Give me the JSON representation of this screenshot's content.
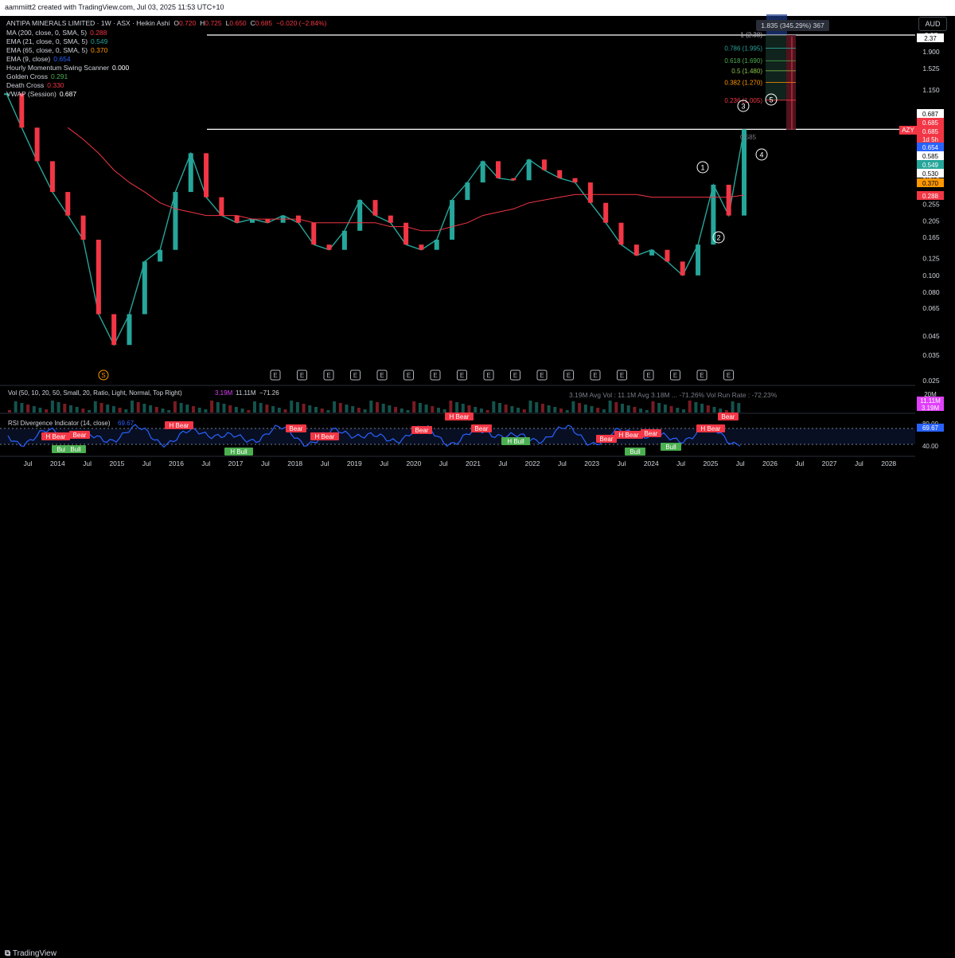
{
  "header": {
    "credit": "aammiitt2 created with TradingView.com, Jul 03, 2025 11:53 UTC+10",
    "currency": "AUD"
  },
  "legend": {
    "title": "ANTIPA MINERALS LIMITED · 1W · ASX · Heikin Ashi",
    "ohlc": [
      {
        "k": "O",
        "v": "0.720"
      },
      {
        "k": "H",
        "v": "0.725"
      },
      {
        "k": "L",
        "v": "0.650"
      },
      {
        "k": "C",
        "v": "0.685"
      },
      {
        "k": "",
        "v": "−0.020 (−2.84%)"
      }
    ],
    "lines": [
      {
        "label": "MA (200, close, 0, SMA, 5)",
        "value": "0.288",
        "color": "#f23645"
      },
      {
        "label": "EMA (21, close, 0, SMA, 5)",
        "value": "0.549",
        "color": "#26a69a"
      },
      {
        "label": "EMA (65, close, 0, SMA, 5)",
        "value": "0.370",
        "color": "#ff9800"
      },
      {
        "label": "EMA (9, close)",
        "value": "0.654",
        "color": "#2962ff"
      },
      {
        "label": "Hourly Momentum Swing Scanner",
        "value": "0.000",
        "color": "#ffffff"
      },
      {
        "label": "Golden Cross",
        "value": "0.291",
        "color": "#4caf50"
      },
      {
        "label": "Death Cross",
        "value": "0.330",
        "color": "#f23645"
      },
      {
        "label": "VWAP (Session)",
        "value": "0.687",
        "color": "#ffffff"
      }
    ]
  },
  "price_axis": {
    "ticks": [
      "2.37",
      "1.900",
      "1.525",
      "1.150",
      "0.685",
      "0.585",
      "0.530",
      "0.370",
      "0.288",
      "0.255",
      "0.205",
      "0.165",
      "0.125",
      "0.100",
      "0.080",
      "0.065",
      "0.045",
      "0.035",
      "0.025"
    ],
    "badges": [
      {
        "text": "2.37",
        "bg": "#ffffff",
        "fg": "#000000"
      },
      {
        "text": "0.687",
        "bg": "#ffffff",
        "fg": "#000000"
      },
      {
        "text": "0.685",
        "bg": "#f23645",
        "fg": "#ffffff"
      },
      {
        "text": "0.685",
        "bg": "#f23645",
        "fg": "#ffffff"
      },
      {
        "text": "1d 5h",
        "bg": "#f23645",
        "fg": "#ffffff"
      },
      {
        "text": "0.654",
        "bg": "#2962ff",
        "fg": "#ffffff"
      },
      {
        "text": "0.585",
        "bg": "#ffffff",
        "fg": "#000000"
      },
      {
        "text": "0.549",
        "bg": "#26a69a",
        "fg": "#ffffff"
      },
      {
        "text": "0.530",
        "bg": "#ffffff",
        "fg": "#000000"
      },
      {
        "text": "0.370",
        "bg": "#ff9800",
        "fg": "#000000"
      },
      {
        "text": "0.288",
        "bg": "#f23645",
        "fg": "#ffffff"
      }
    ],
    "symbol_tag": "AZY"
  },
  "fib_levels": [
    {
      "label": "1 (2.38)",
      "price": 2.38,
      "color": "#b2b5be"
    },
    {
      "label": "0.786 (1.995)",
      "price": 1.995,
      "color": "#26a69a"
    },
    {
      "label": "0.618 (1.690)",
      "price": 1.69,
      "color": "#4caf50"
    },
    {
      "label": "0.5 (1.480)",
      "price": 1.48,
      "color": "#8bc34a"
    },
    {
      "label": "0.382 (1.270)",
      "price": 1.27,
      "color": "#ff9800"
    },
    {
      "label": "0.236 (1.005)",
      "price": 1.005,
      "color": "#f23645"
    }
  ],
  "measure_box": {
    "label": "1.835 (345.29%) 367"
  },
  "wave_labels": [
    "1",
    "2",
    "3",
    "4",
    "5"
  ],
  "wave_extra": "0.585",
  "event_markers": [
    "S",
    "E",
    "E",
    "E",
    "E",
    "E",
    "E",
    "E",
    "E",
    "E",
    "E",
    "E",
    "E",
    "E",
    "E",
    "E",
    "E",
    "E",
    "E"
  ],
  "volume_pane": {
    "label": "Vol (50, 10, 20, 50, Small, 20, Ratio, Light, Normal, Top Right)",
    "v1": "3.19M",
    "v2": "11.11M",
    "v3": "−71.26",
    "stats": "3.19M  Avg Vol : 11.1M  Avg 3.18M ... -71.26%  Vol Run Rate : -72.23%",
    "axis": [
      "20M",
      "11.11M",
      "3.19M"
    ]
  },
  "rsi_pane": {
    "label": "RSI Divergence Indicator (14, close)",
    "value": "69.67",
    "axis": [
      "80.00",
      "69.67",
      "40.00"
    ],
    "bear_tags": [
      "H Bear",
      "Bear",
      "H Bear",
      "Bear",
      "H Bear",
      "Bear",
      "H Bear",
      "Bear",
      "H Bear",
      "Bear",
      "H Bear",
      "Bear",
      "Bear"
    ],
    "bull_tags": [
      "Bull",
      "Bull",
      "H Bull",
      "H Bull",
      "Bull",
      "Bull"
    ]
  },
  "time_axis": [
    "Jul",
    "2014",
    "Jul",
    "2015",
    "Jul",
    "2016",
    "Jul",
    "2017",
    "Jul",
    "2018",
    "Jul",
    "2019",
    "Jul",
    "2020",
    "Jul",
    "2021",
    "Jul",
    "2022",
    "Jul",
    "2023",
    "Jul",
    "2024",
    "Jul",
    "2025",
    "Jul",
    "2026",
    "Jul",
    "2027",
    "Jul",
    "2028"
  ],
  "footer": {
    "brand": "TradingView"
  },
  "chart_data": {
    "type": "line",
    "title": "ANTIPA MINERALS LIMITED · 1W · ASX · Heikin Ashi",
    "xlabel": "",
    "ylabel": "",
    "log_scale": true,
    "ylim": [
      0.025,
      2.37
    ],
    "x": [
      "2013-07",
      "2013-10",
      "2014-01",
      "2014-04",
      "2014-07",
      "2014-10",
      "2015-01",
      "2015-04",
      "2015-07",
      "2015-10",
      "2016-01",
      "2016-04",
      "2016-07",
      "2016-10",
      "2017-01",
      "2017-04",
      "2017-07",
      "2017-10",
      "2018-01",
      "2018-04",
      "2018-07",
      "2018-10",
      "2019-01",
      "2019-04",
      "2019-07",
      "2019-10",
      "2020-01",
      "2020-04",
      "2020-07",
      "2020-10",
      "2021-01",
      "2021-04",
      "2021-07",
      "2021-10",
      "2022-01",
      "2022-04",
      "2022-07",
      "2022-10",
      "2023-01",
      "2023-04",
      "2023-07",
      "2023-10",
      "2024-01",
      "2024-04",
      "2024-07",
      "2024-10",
      "2025-01",
      "2025-04",
      "2025-07"
    ],
    "series": [
      {
        "name": "Price",
        "values": [
          1.1,
          0.7,
          0.45,
          0.3,
          0.22,
          0.16,
          0.06,
          0.04,
          0.06,
          0.12,
          0.14,
          0.3,
          0.5,
          0.28,
          0.22,
          0.2,
          0.21,
          0.2,
          0.22,
          0.2,
          0.15,
          0.14,
          0.18,
          0.27,
          0.22,
          0.2,
          0.15,
          0.14,
          0.16,
          0.27,
          0.34,
          0.45,
          0.36,
          0.35,
          0.46,
          0.4,
          0.36,
          0.34,
          0.26,
          0.2,
          0.15,
          0.13,
          0.14,
          0.12,
          0.1,
          0.15,
          0.33,
          0.22,
          0.685
        ]
      },
      {
        "name": "MA (200, close, 0, SMA, 5)",
        "values": [
          null,
          null,
          null,
          null,
          0.7,
          0.6,
          0.5,
          0.4,
          0.34,
          0.3,
          0.26,
          0.24,
          0.23,
          0.22,
          0.22,
          0.22,
          0.21,
          0.21,
          0.21,
          0.21,
          0.2,
          0.2,
          0.2,
          0.2,
          0.2,
          0.19,
          0.19,
          0.18,
          0.18,
          0.19,
          0.2,
          0.22,
          0.23,
          0.24,
          0.26,
          0.27,
          0.28,
          0.29,
          0.29,
          0.29,
          0.29,
          0.29,
          0.28,
          0.28,
          0.28,
          0.28,
          0.28,
          0.28,
          0.288
        ]
      }
    ],
    "reference_lines": [
      {
        "name": "resistance",
        "value": 0.685
      },
      {
        "name": "fib target",
        "value": 2.37
      }
    ]
  }
}
